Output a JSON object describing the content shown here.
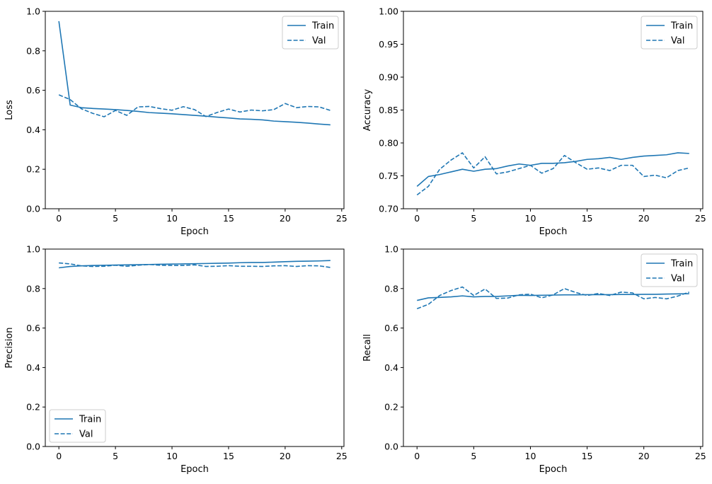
{
  "colors": {
    "series": "#1f77b4",
    "axis": "#000000",
    "legend_border": "#cccccc"
  },
  "chart_data": [
    {
      "type": "line",
      "xlabel": "Epoch",
      "ylabel": "Loss",
      "xlim": [
        -1.2,
        25.2
      ],
      "ylim": [
        0,
        1.0
      ],
      "xticks": [
        0,
        5,
        10,
        15,
        20,
        25
      ],
      "xtick_labels": [
        "0",
        "5",
        "10",
        "15",
        "20",
        "25"
      ],
      "yticks": [
        0,
        0.2,
        0.4,
        0.6,
        0.8,
        1.0
      ],
      "ytick_labels": [
        "0.0",
        "0.2",
        "0.4",
        "0.6",
        "0.8",
        "1.0"
      ],
      "legend_position": "upper right",
      "grid": false,
      "x": [
        0,
        1,
        2,
        3,
        4,
        5,
        6,
        7,
        8,
        9,
        10,
        11,
        12,
        13,
        14,
        15,
        16,
        17,
        18,
        19,
        20,
        21,
        22,
        23,
        24
      ],
      "series": [
        {
          "name": "Train",
          "style": "solid",
          "values": [
            0.95,
            0.525,
            0.512,
            0.508,
            0.505,
            0.502,
            0.498,
            0.493,
            0.487,
            0.484,
            0.481,
            0.477,
            0.473,
            0.469,
            0.464,
            0.46,
            0.455,
            0.453,
            0.45,
            0.444,
            0.441,
            0.438,
            0.434,
            0.429,
            0.425
          ]
        },
        {
          "name": "Val",
          "style": "dashed",
          "values": [
            0.577,
            0.553,
            0.506,
            0.483,
            0.466,
            0.498,
            0.473,
            0.516,
            0.518,
            0.507,
            0.499,
            0.517,
            0.502,
            0.467,
            0.488,
            0.505,
            0.49,
            0.5,
            0.496,
            0.502,
            0.533,
            0.512,
            0.518,
            0.516,
            0.498
          ]
        }
      ]
    },
    {
      "type": "line",
      "xlabel": "Epoch",
      "ylabel": "Accuracy",
      "xlim": [
        -1.2,
        25.2
      ],
      "ylim": [
        0.7,
        1.0
      ],
      "xticks": [
        0,
        5,
        10,
        15,
        20,
        25
      ],
      "xtick_labels": [
        "0",
        "5",
        "10",
        "15",
        "20",
        "25"
      ],
      "yticks": [
        0.7,
        0.75,
        0.8,
        0.85,
        0.9,
        0.95,
        1.0
      ],
      "ytick_labels": [
        "0.70",
        "0.75",
        "0.80",
        "0.85",
        "0.90",
        "0.95",
        "1.00"
      ],
      "legend_position": "upper right",
      "grid": false,
      "x": [
        0,
        1,
        2,
        3,
        4,
        5,
        6,
        7,
        8,
        9,
        10,
        11,
        12,
        13,
        14,
        15,
        16,
        17,
        18,
        19,
        20,
        21,
        22,
        23,
        24
      ],
      "series": [
        {
          "name": "Train",
          "style": "solid",
          "values": [
            0.734,
            0.749,
            0.752,
            0.756,
            0.76,
            0.757,
            0.76,
            0.761,
            0.765,
            0.768,
            0.766,
            0.769,
            0.769,
            0.77,
            0.772,
            0.775,
            0.776,
            0.778,
            0.775,
            0.778,
            0.78,
            0.781,
            0.782,
            0.785,
            0.784
          ]
        },
        {
          "name": "Val",
          "style": "dashed",
          "values": [
            0.721,
            0.734,
            0.76,
            0.774,
            0.785,
            0.762,
            0.779,
            0.753,
            0.756,
            0.761,
            0.766,
            0.754,
            0.761,
            0.781,
            0.77,
            0.76,
            0.762,
            0.758,
            0.766,
            0.766,
            0.749,
            0.751,
            0.747,
            0.758,
            0.762
          ]
        }
      ]
    },
    {
      "type": "line",
      "xlabel": "Epoch",
      "ylabel": "Precision",
      "xlim": [
        -1.2,
        25.2
      ],
      "ylim": [
        0,
        1.0
      ],
      "xticks": [
        0,
        5,
        10,
        15,
        20,
        25
      ],
      "xtick_labels": [
        "0",
        "5",
        "10",
        "15",
        "20",
        "25"
      ],
      "yticks": [
        0,
        0.2,
        0.4,
        0.6,
        0.8,
        1.0
      ],
      "ytick_labels": [
        "0.0",
        "0.2",
        "0.4",
        "0.6",
        "0.8",
        "1.0"
      ],
      "legend_position": "lower left",
      "grid": false,
      "x": [
        0,
        1,
        2,
        3,
        4,
        5,
        6,
        7,
        8,
        9,
        10,
        11,
        12,
        13,
        14,
        15,
        16,
        17,
        18,
        19,
        20,
        21,
        22,
        23,
        24
      ],
      "series": [
        {
          "name": "Train",
          "style": "solid",
          "values": [
            0.905,
            0.912,
            0.915,
            0.917,
            0.918,
            0.919,
            0.92,
            0.921,
            0.922,
            0.923,
            0.924,
            0.925,
            0.926,
            0.927,
            0.928,
            0.929,
            0.931,
            0.932,
            0.932,
            0.934,
            0.936,
            0.938,
            0.939,
            0.94,
            0.942
          ]
        },
        {
          "name": "Val",
          "style": "dashed",
          "values": [
            0.93,
            0.925,
            0.915,
            0.912,
            0.913,
            0.918,
            0.913,
            0.918,
            0.922,
            0.918,
            0.917,
            0.917,
            0.92,
            0.912,
            0.913,
            0.916,
            0.913,
            0.913,
            0.912,
            0.915,
            0.916,
            0.912,
            0.916,
            0.915,
            0.907
          ]
        }
      ]
    },
    {
      "type": "line",
      "xlabel": "Epoch",
      "ylabel": "Recall",
      "xlim": [
        -1.2,
        25.2
      ],
      "ylim": [
        0,
        1.0
      ],
      "xticks": [
        0,
        5,
        10,
        15,
        20,
        25
      ],
      "xtick_labels": [
        "0",
        "5",
        "10",
        "15",
        "20",
        "25"
      ],
      "yticks": [
        0,
        0.2,
        0.4,
        0.6,
        0.8,
        1.0
      ],
      "ytick_labels": [
        "0.0",
        "0.2",
        "0.4",
        "0.6",
        "0.8",
        "1.0"
      ],
      "legend_position": "upper right",
      "grid": false,
      "x": [
        0,
        1,
        2,
        3,
        4,
        5,
        6,
        7,
        8,
        9,
        10,
        11,
        12,
        13,
        14,
        15,
        16,
        17,
        18,
        19,
        20,
        21,
        22,
        23,
        24
      ],
      "series": [
        {
          "name": "Train",
          "style": "solid",
          "values": [
            0.74,
            0.753,
            0.755,
            0.758,
            0.763,
            0.758,
            0.76,
            0.76,
            0.763,
            0.766,
            0.765,
            0.766,
            0.767,
            0.768,
            0.768,
            0.769,
            0.769,
            0.769,
            0.77,
            0.77,
            0.771,
            0.771,
            0.772,
            0.773,
            0.774
          ]
        },
        {
          "name": "Val",
          "style": "dashed",
          "values": [
            0.698,
            0.72,
            0.765,
            0.79,
            0.808,
            0.765,
            0.798,
            0.75,
            0.752,
            0.768,
            0.772,
            0.753,
            0.768,
            0.8,
            0.78,
            0.765,
            0.775,
            0.765,
            0.782,
            0.778,
            0.748,
            0.755,
            0.748,
            0.762,
            0.782
          ]
        }
      ]
    }
  ]
}
